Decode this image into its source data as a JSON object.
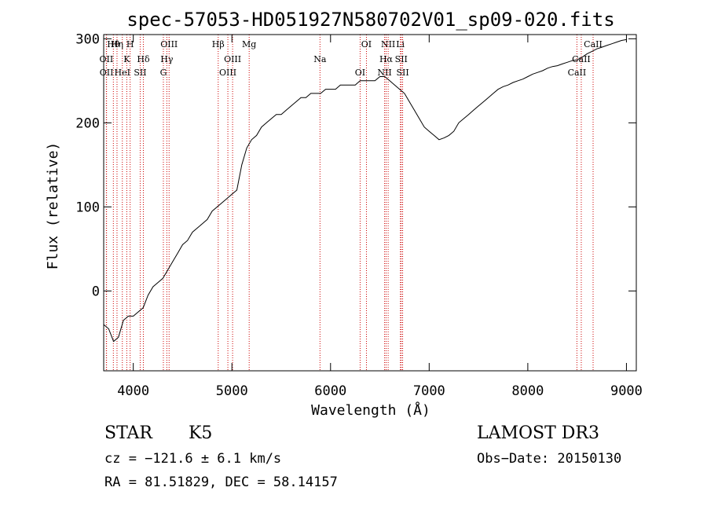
{
  "chart_data": {
    "type": "line",
    "title": "spec-57053-HD051927N580702V01_sp09-020.fits",
    "xlabel": "Wavelength (Å)",
    "ylabel": "Flux (relative)",
    "xlim": [
      3700,
      9100
    ],
    "ylim": [
      -95,
      305
    ],
    "xticks": [
      4000,
      5000,
      6000,
      7000,
      8000,
      9000
    ],
    "yticks": [
      0,
      100,
      200,
      300
    ],
    "grid": false,
    "series": [
      {
        "x": [
          3700,
          3750,
          3800,
          3850,
          3900,
          3950,
          4000,
          4050,
          4100,
          4150,
          4200,
          4250,
          4300,
          4350,
          4400,
          4450,
          4500,
          4550,
          4600,
          4650,
          4700,
          4750,
          4800,
          4850,
          4900,
          4950,
          5000,
          5050,
          5100,
          5150,
          5200,
          5250,
          5300,
          5350,
          5400,
          5450,
          5500,
          5550,
          5600,
          5650,
          5700,
          5750,
          5800,
          5850,
          5900,
          5950,
          6000,
          6050,
          6100,
          6150,
          6200,
          6250,
          6300,
          6350,
          6400,
          6450,
          6500,
          6550,
          6600,
          6650,
          6700,
          6750,
          6800,
          6850,
          6900,
          6950,
          7000,
          7050,
          7100,
          7150,
          7200,
          7250,
          7300,
          7350,
          7400,
          7450,
          7500,
          7550,
          7600,
          7650,
          7700,
          7750,
          7800,
          7850,
          7900,
          7950,
          8000,
          8050,
          8100,
          8150,
          8200,
          8250,
          8300,
          8350,
          8400,
          8450,
          8500,
          8550,
          8600,
          8650,
          8700,
          8750,
          8800,
          8850,
          8900,
          8950,
          9000
        ],
        "y": [
          -40,
          -45,
          -60,
          -55,
          -35,
          -30,
          -30,
          -25,
          -20,
          -5,
          5,
          10,
          15,
          25,
          35,
          45,
          55,
          60,
          70,
          75,
          80,
          85,
          95,
          100,
          105,
          110,
          115,
          120,
          150,
          170,
          180,
          185,
          195,
          200,
          205,
          210,
          210,
          215,
          220,
          225,
          230,
          230,
          235,
          235,
          235,
          240,
          240,
          240,
          245,
          245,
          245,
          245,
          250,
          250,
          250,
          250,
          255,
          255,
          250,
          245,
          240,
          235,
          225,
          215,
          205,
          195,
          190,
          185,
          180,
          182,
          185,
          190,
          200,
          205,
          210,
          215,
          220,
          225,
          230,
          235,
          240,
          243,
          245,
          248,
          250,
          252,
          255,
          258,
          260,
          262,
          265,
          267,
          268,
          270,
          272,
          274,
          275,
          278,
          282,
          285,
          288,
          290,
          292,
          294,
          296,
          298,
          299
        ]
      }
    ],
    "spectral_lines": [
      {
        "label": "Hθ",
        "wl": 3798
      },
      {
        "label": "OII",
        "wl": 3727
      },
      {
        "label": "OII",
        "wl": 3729
      },
      {
        "label": "Hη",
        "wl": 3835
      },
      {
        "label": "K",
        "wl": 3934
      },
      {
        "label": "HeI",
        "wl": 3889
      },
      {
        "label": "H",
        "wl": 3968
      },
      {
        "label": "Hδ",
        "wl": 4102
      },
      {
        "label": "SII",
        "wl": 4070
      },
      {
        "label": "OIII",
        "wl": 4363
      },
      {
        "label": "Hγ",
        "wl": 4340
      },
      {
        "label": "G",
        "wl": 4305
      },
      {
        "label": "Hβ",
        "wl": 4861
      },
      {
        "label": "OIII",
        "wl": 5007
      },
      {
        "label": "OIII",
        "wl": 4959
      },
      {
        "label": "Mg",
        "wl": 5175
      },
      {
        "label": "Na",
        "wl": 5893
      },
      {
        "label": "OI",
        "wl": 6300
      },
      {
        "label": "OI",
        "wl": 6364
      },
      {
        "label": "Hα",
        "wl": 6563
      },
      {
        "label": "NII",
        "wl": 6548
      },
      {
        "label": "NII",
        "wl": 6584
      },
      {
        "label": "SII",
        "wl": 6717
      },
      {
        "label": "SII",
        "wl": 6731
      },
      {
        "label": "Li",
        "wl": 6708
      },
      {
        "label": "CaII",
        "wl": 8542
      },
      {
        "label": "CaII",
        "wl": 8498
      },
      {
        "label": "CaII",
        "wl": 8662
      }
    ]
  },
  "info": {
    "object_class": "STAR",
    "subclass": "K5",
    "survey": "LAMOST DR3",
    "redshift": "cz = −121.6 ± 6.1 km/s",
    "obs_date": "Obs−Date: 20150130",
    "coords": "RA =  81.51829, DEC =  58.14157"
  },
  "colors": {
    "spectrum": "#000000",
    "line_markers": "#cc0000",
    "text": "#000000"
  }
}
